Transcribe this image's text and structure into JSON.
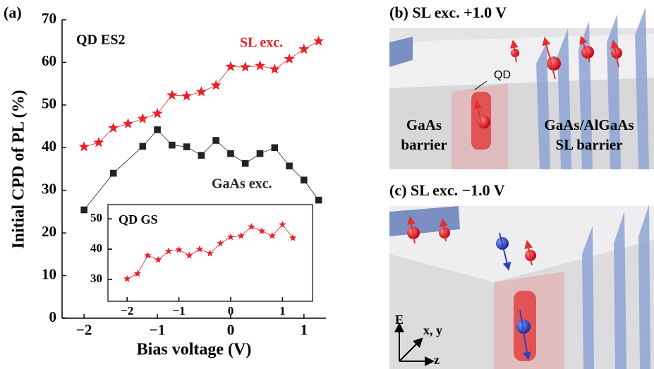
{
  "chart_data": [
    {
      "type": "line",
      "panel_label": "(a)",
      "annotation": "QD ES2",
      "x_label": "Bias voltage (V)",
      "y_label": "Initial CPD of PL (%)",
      "xlim": [
        -2.3,
        1.3
      ],
      "ylim": [
        0,
        70
      ],
      "xticks": [
        {
          "value": -2,
          "label": "−2"
        },
        {
          "value": -1,
          "label": "−1"
        },
        0,
        1
      ],
      "yticks": [
        0,
        10,
        20,
        30,
        40,
        50,
        60,
        70
      ],
      "series": [
        {
          "name": "SL exc.",
          "color": "#e8202a",
          "marker": "star",
          "x": [
            -2,
            -1.8,
            -1.6,
            -1.4,
            -1.2,
            -1.0,
            -0.8,
            -0.6,
            -0.4,
            -0.2,
            0,
            0.2,
            0.4,
            0.6,
            0.8,
            1.0,
            1.2
          ],
          "values": [
            40.2,
            41.2,
            44.6,
            45.6,
            46.8,
            48,
            52.3,
            52.1,
            53.1,
            54.6,
            59,
            58.9,
            59.2,
            58.4,
            60.8,
            63.1,
            65
          ]
        },
        {
          "name": "GaAs exc.",
          "color": "#222222",
          "marker": "square",
          "x": [
            -2,
            -1.6,
            -1.2,
            -1.0,
            -0.8,
            -0.6,
            -0.4,
            -0.2,
            0,
            0.2,
            0.4,
            0.6,
            0.8,
            1.0,
            1.2
          ],
          "values": [
            25.4,
            34,
            40.3,
            44.2,
            40.6,
            40.2,
            38.2,
            41.7,
            38.6,
            36.3,
            38.6,
            40,
            35.7,
            32.4,
            27.7
          ]
        }
      ]
    },
    {
      "type": "line",
      "annotation": "QD GS",
      "xlim": [
        -2.37,
        1.58
      ],
      "ylim": [
        22.8,
        54.7
      ],
      "xticks": [
        {
          "value": -2,
          "label": "−2"
        },
        {
          "value": -1,
          "label": "−1"
        },
        0,
        1
      ],
      "yticks": [
        30,
        40,
        50
      ],
      "series": [
        {
          "color": "#e8202a",
          "marker": "star",
          "x": [
            -2,
            -1.8,
            -1.6,
            -1.4,
            -1.2,
            -1.0,
            -0.8,
            -0.6,
            -0.4,
            -0.2,
            0,
            0.2,
            0.4,
            0.6,
            0.8,
            1.0,
            1.2
          ],
          "values": [
            30.2,
            31.9,
            37.9,
            36.5,
            39.3,
            39.8,
            37.9,
            40,
            38.6,
            41.9,
            44,
            44.4,
            47.4,
            46,
            44.4,
            48.1,
            43.7
          ]
        }
      ]
    }
  ],
  "panels": {
    "b": {
      "title": "(b) SL exc.  +1.0 V",
      "qd": "QD",
      "left_label": [
        "GaAs",
        "barrier"
      ],
      "right_label": [
        "GaAs/AlGaAs",
        "SL barrier"
      ]
    },
    "c": {
      "title": "(c) SL exc.  −1.0 V",
      "axes": [
        "E",
        "x, y",
        "z"
      ]
    }
  }
}
